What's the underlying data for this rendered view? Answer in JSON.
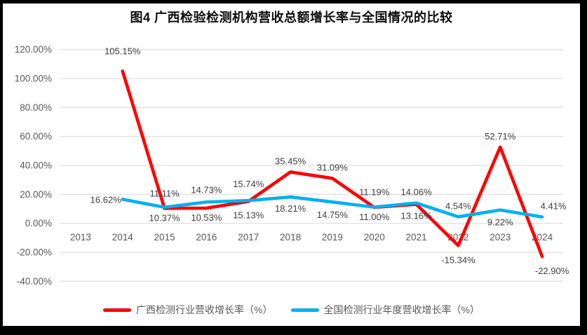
{
  "title": "图4 广西检验检测机构营收总额增长率与全国情况的比较",
  "chart_data": {
    "type": "line",
    "title": "图4 广西检验检测机构营收总额增长率与全国情况的比较",
    "categories": [
      "2013",
      "2014",
      "2015",
      "2016",
      "2017",
      "2018",
      "2019",
      "2020",
      "2021",
      "2022",
      "2023",
      "2024"
    ],
    "series": [
      {
        "id": "guangxi",
        "name": "广西检测行业营收增长率（%）",
        "color": "#ff0000",
        "values": [
          null,
          105.15,
          10.37,
          10.53,
          15.13,
          35.45,
          31.09,
          11.0,
          13.16,
          -15.34,
          52.71,
          -22.9
        ],
        "label_hints": [
          null,
          {
            "pos": "above",
            "dy": -13
          },
          {
            "pos": "below"
          },
          {
            "pos": "below"
          },
          {
            "pos": "below",
            "dy": 6
          },
          {
            "pos": "above"
          },
          {
            "pos": "above"
          },
          {
            "pos": "below"
          },
          {
            "pos": "below",
            "dy": 3
          },
          {
            "pos": "below",
            "dy": 7
          },
          {
            "pos": "above"
          },
          {
            "pos": "below",
            "dy": 7,
            "dx": 14
          }
        ]
      },
      {
        "id": "national",
        "name": "全国检测行业年度营收增长率（%）",
        "color": "#00b0f0",
        "values": [
          null,
          16.62,
          11.11,
          14.73,
          15.74,
          18.21,
          14.75,
          11.19,
          14.06,
          4.54,
          9.22,
          4.41
        ],
        "label_hints": [
          null,
          {
            "pos": "left"
          },
          {
            "pos": "above",
            "dy": -4
          },
          {
            "pos": "above",
            "dy": -2
          },
          {
            "pos": "above",
            "dy": -8
          },
          {
            "pos": "below",
            "dy": 3
          },
          {
            "pos": "below",
            "dy": 5
          },
          {
            "pos": "above",
            "dy": -6
          },
          {
            "pos": "above"
          },
          {
            "pos": "above"
          },
          {
            "pos": "below",
            "dy": 4
          },
          {
            "pos": "above",
            "dx": 16
          }
        ]
      }
    ],
    "xlabel": "",
    "ylabel": "",
    "ylim": [
      -40,
      120
    ],
    "ytick_step": 20,
    "ytick_format": "0.00%",
    "grid": true,
    "legend_position": "bottom",
    "gridline_color": "#e2e2e2",
    "axis_text_color": "#595959",
    "label_text_color": "#3f3f3f",
    "background_color": "#ffffff",
    "frame_color": "#000000"
  }
}
